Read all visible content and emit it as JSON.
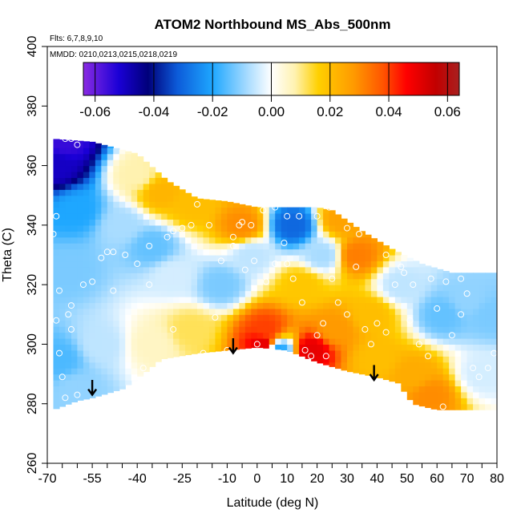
{
  "chart_data": {
    "type": "heatmap",
    "title": "ATOM2 Northbound MS_Abs_500nm",
    "subtitle_flights": "Flts: 6,7,8,9,10",
    "subtitle_dates": "MMDD: 0210,0213,0215,0218,0219",
    "xlabel": "Latitude (deg N)",
    "ylabel": "Theta (C)",
    "xlim": [
      -70,
      80
    ],
    "ylim": [
      260,
      400
    ],
    "x_ticks": [
      -70,
      -55,
      -40,
      -25,
      -10,
      0,
      10,
      20,
      30,
      40,
      50,
      60,
      70,
      80
    ],
    "x_minor_step": 5,
    "y_ticks": [
      260,
      280,
      300,
      320,
      340,
      360,
      380,
      400
    ],
    "colorbar": {
      "range": [
        -0.064,
        0.064
      ],
      "ticks": [
        -0.06,
        -0.04,
        -0.02,
        0.0,
        0.02,
        0.04,
        0.06
      ],
      "tick_labels": [
        "-0.06",
        "-0.04",
        "-0.02",
        "0.00",
        "0.02",
        "0.04",
        "0.06"
      ],
      "stops": [
        {
          "v": -0.064,
          "c": "#8a2be2"
        },
        {
          "v": -0.052,
          "c": "#1a00d6"
        },
        {
          "v": -0.042,
          "c": "#00007a"
        },
        {
          "v": -0.032,
          "c": "#0c5bd9"
        },
        {
          "v": -0.02,
          "c": "#1ea7ff"
        },
        {
          "v": -0.008,
          "c": "#a9dcff"
        },
        {
          "v": 0.0,
          "c": "#ffffff"
        },
        {
          "v": 0.008,
          "c": "#fff2b0"
        },
        {
          "v": 0.016,
          "c": "#ffd000"
        },
        {
          "v": 0.028,
          "c": "#ff9a00"
        },
        {
          "v": 0.038,
          "c": "#ff5500"
        },
        {
          "v": 0.046,
          "c": "#ff0000"
        },
        {
          "v": 0.056,
          "c": "#c20000"
        },
        {
          "v": 0.064,
          "c": "#a8201f"
        }
      ]
    },
    "domain": {
      "lat_range": [
        -68,
        80
      ],
      "upper_theta": [
        [
          -68,
          369
        ],
        [
          -55,
          368
        ],
        [
          -40,
          364
        ],
        [
          -30,
          355
        ],
        [
          -20,
          349
        ],
        [
          -10,
          348
        ],
        [
          0,
          346
        ],
        [
          10,
          346
        ],
        [
          20,
          346
        ],
        [
          25,
          345
        ],
        [
          35,
          338
        ],
        [
          45,
          332
        ],
        [
          55,
          327
        ],
        [
          65,
          324
        ],
        [
          72,
          324
        ],
        [
          80,
          324
        ]
      ],
      "lower_theta": [
        [
          -68,
          278
        ],
        [
          -60,
          281
        ],
        [
          -55,
          282
        ],
        [
          -45,
          285
        ],
        [
          -38,
          290
        ],
        [
          -32,
          295
        ],
        [
          -20,
          297
        ],
        [
          -10,
          298
        ],
        [
          0,
          299
        ],
        [
          10,
          298
        ],
        [
          20,
          294
        ],
        [
          30,
          291
        ],
        [
          40,
          289
        ],
        [
          47,
          287
        ],
        [
          52,
          280
        ],
        [
          60,
          278
        ],
        [
          70,
          278
        ],
        [
          80,
          278
        ]
      ]
    },
    "field_nodes": [
      {
        "lat": -67,
        "theta": 360,
        "v": -0.05
      },
      {
        "lat": -64,
        "theta": 368,
        "v": -0.055
      },
      {
        "lat": -60,
        "theta": 345,
        "v": -0.02
      },
      {
        "lat": -63,
        "theta": 325,
        "v": -0.012
      },
      {
        "lat": -66,
        "theta": 295,
        "v": -0.016
      },
      {
        "lat": -60,
        "theta": 285,
        "v": -0.01
      },
      {
        "lat": -52,
        "theta": 300,
        "v": -0.006
      },
      {
        "lat": -45,
        "theta": 340,
        "v": -0.008
      },
      {
        "lat": -40,
        "theta": 357,
        "v": 0.008
      },
      {
        "lat": -32,
        "theta": 351,
        "v": 0.022
      },
      {
        "lat": -22,
        "theta": 347,
        "v": 0.02
      },
      {
        "lat": -35,
        "theta": 333,
        "v": -0.014
      },
      {
        "lat": -28,
        "theta": 323,
        "v": -0.004
      },
      {
        "lat": -22,
        "theta": 305,
        "v": 0.012
      },
      {
        "lat": -35,
        "theta": 300,
        "v": 0.006
      },
      {
        "lat": -12,
        "theta": 320,
        "v": -0.012
      },
      {
        "lat": -5,
        "theta": 340,
        "v": 0.03
      },
      {
        "lat": -2,
        "theta": 330,
        "v": -0.006
      },
      {
        "lat": 3,
        "theta": 305,
        "v": 0.04
      },
      {
        "lat": 2,
        "theta": 300,
        "v": 0.05
      },
      {
        "lat": 7,
        "theta": 298,
        "v": -0.02
      },
      {
        "lat": 12,
        "theta": 340,
        "v": -0.03
      },
      {
        "lat": 15,
        "theta": 320,
        "v": 0.018
      },
      {
        "lat": 18,
        "theta": 298,
        "v": 0.05
      },
      {
        "lat": 22,
        "theta": 330,
        "v": -0.008
      },
      {
        "lat": 26,
        "theta": 305,
        "v": 0.028
      },
      {
        "lat": 28,
        "theta": 342,
        "v": 0.026
      },
      {
        "lat": 33,
        "theta": 330,
        "v": 0.032
      },
      {
        "lat": 38,
        "theta": 310,
        "v": 0.02
      },
      {
        "lat": 40,
        "theta": 295,
        "v": 0.02
      },
      {
        "lat": 48,
        "theta": 320,
        "v": -0.006
      },
      {
        "lat": 52,
        "theta": 290,
        "v": 0.024
      },
      {
        "lat": 58,
        "theta": 283,
        "v": 0.03
      },
      {
        "lat": 62,
        "theta": 310,
        "v": -0.014
      },
      {
        "lat": 70,
        "theta": 315,
        "v": -0.01
      },
      {
        "lat": 75,
        "theta": 290,
        "v": -0.004
      },
      {
        "lat": 78,
        "theta": 310,
        "v": -0.012
      }
    ],
    "sample_points": [
      [
        -64,
        369
      ],
      [
        -62,
        369
      ],
      [
        -60,
        367
      ],
      [
        -67,
        343
      ],
      [
        -68,
        337
      ],
      [
        -66,
        318
      ],
      [
        -67,
        308
      ],
      [
        -63,
        310
      ],
      [
        -62,
        305
      ],
      [
        -66,
        297
      ],
      [
        -65,
        289
      ],
      [
        -64,
        282
      ],
      [
        -60,
        283
      ],
      [
        -52,
        329
      ],
      [
        -50,
        331
      ],
      [
        -48,
        331
      ],
      [
        -44,
        330
      ],
      [
        -48,
        318
      ],
      [
        -40,
        327
      ],
      [
        -36,
        333
      ],
      [
        -30,
        336
      ],
      [
        -28,
        338
      ],
      [
        -25,
        339
      ],
      [
        -22,
        340
      ],
      [
        -36,
        320
      ],
      [
        -38,
        292
      ],
      [
        -42,
        285
      ],
      [
        -55,
        321
      ],
      [
        -58,
        320
      ],
      [
        -62,
        313
      ],
      [
        -28,
        305
      ],
      [
        -18,
        297
      ],
      [
        -14,
        309
      ],
      [
        -12,
        328
      ],
      [
        -8,
        333
      ],
      [
        -6,
        340
      ],
      [
        -4,
        325
      ],
      [
        -1,
        328
      ],
      [
        3,
        321
      ],
      [
        6,
        327
      ],
      [
        9,
        334
      ],
      [
        10,
        327
      ],
      [
        12,
        322
      ],
      [
        15,
        314
      ],
      [
        18,
        296
      ],
      [
        20,
        303
      ],
      [
        22,
        307
      ],
      [
        25,
        322
      ],
      [
        27,
        314
      ],
      [
        30,
        310
      ],
      [
        33,
        326
      ],
      [
        36,
        305
      ],
      [
        38,
        300
      ],
      [
        40,
        307
      ],
      [
        43,
        304
      ],
      [
        46,
        320
      ],
      [
        49,
        324
      ],
      [
        51,
        308
      ],
      [
        54,
        300
      ],
      [
        57,
        296
      ],
      [
        60,
        312
      ],
      [
        62,
        279
      ],
      [
        65,
        303
      ],
      [
        68,
        310
      ],
      [
        70,
        317
      ],
      [
        72,
        292
      ],
      [
        74,
        289
      ],
      [
        77,
        292
      ],
      [
        79,
        297
      ],
      [
        -10,
        298
      ],
      [
        0,
        300
      ],
      [
        5,
        298
      ],
      [
        11,
        294
      ],
      [
        16,
        298
      ],
      [
        23,
        296
      ],
      [
        14,
        343
      ],
      [
        10,
        343
      ],
      [
        6,
        346
      ],
      [
        2,
        345
      ],
      [
        -2,
        340
      ],
      [
        -5,
        341
      ],
      [
        -8,
        336
      ],
      [
        -16,
        340
      ],
      [
        -20,
        347
      ],
      [
        20,
        343
      ],
      [
        24,
        346
      ],
      [
        30,
        339
      ],
      [
        34,
        337
      ],
      [
        43,
        330
      ],
      [
        48,
        326
      ],
      [
        52,
        320
      ],
      [
        58,
        322
      ],
      [
        63,
        321
      ],
      [
        68,
        322
      ],
      [
        73,
        326
      ]
    ],
    "arrows": [
      {
        "lat": -55,
        "theta_top": 288,
        "theta_bottom": 283
      },
      {
        "lat": -8,
        "theta_top": 302,
        "theta_bottom": 297
      },
      {
        "lat": 39,
        "theta_top": 293,
        "theta_bottom": 288
      }
    ]
  }
}
